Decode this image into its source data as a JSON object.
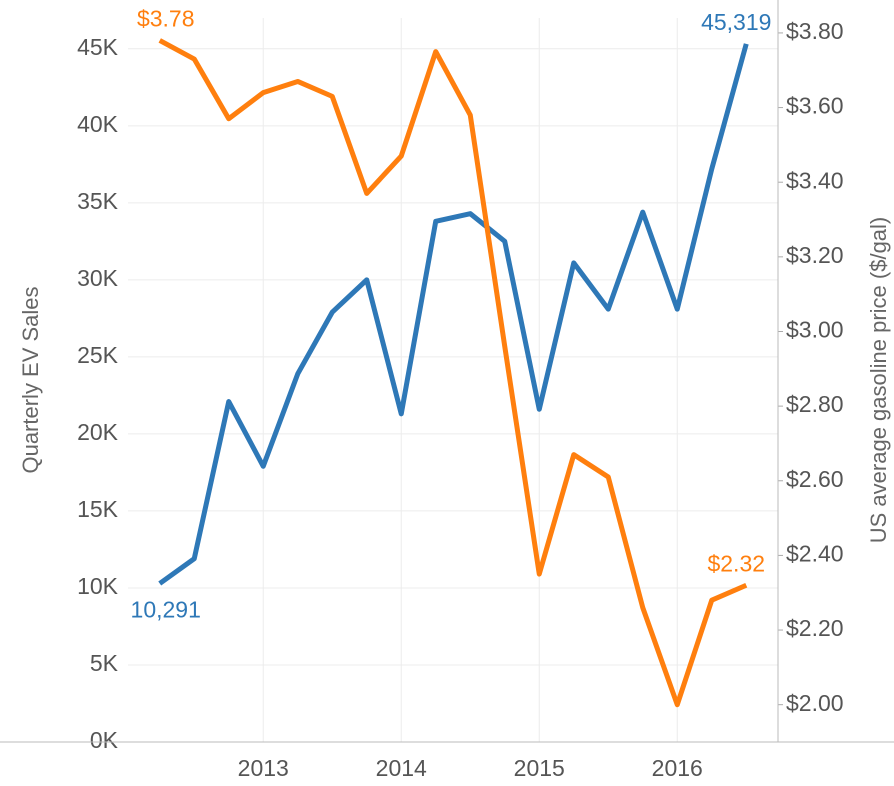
{
  "chart_data": {
    "type": "line",
    "x": [
      2012.25,
      2012.5,
      2012.75,
      2013,
      2013.25,
      2013.5,
      2013.75,
      2014,
      2014.25,
      2014.5,
      2014.75,
      2015,
      2015.25,
      2015.5,
      2015.75,
      2016,
      2016.25,
      2016.5
    ],
    "xlim": [
      2012.02,
      2016.73
    ],
    "xticks": [
      2013,
      2014,
      2015,
      2016
    ],
    "ylabel": "Quarterly EV Sales",
    "y2label": "US average gasoline price ($/gal)",
    "ylim": [
      0,
      47000
    ],
    "yticks": [
      {
        "value": 0,
        "label": "0K"
      },
      {
        "value": 5000,
        "label": "5K"
      },
      {
        "value": 10000,
        "label": "10K"
      },
      {
        "value": 15000,
        "label": "15K"
      },
      {
        "value": 20000,
        "label": "20K"
      },
      {
        "value": 25000,
        "label": "25K"
      },
      {
        "value": 30000,
        "label": "30K"
      },
      {
        "value": 35000,
        "label": "35K"
      },
      {
        "value": 40000,
        "label": "40K"
      },
      {
        "value": 45000,
        "label": "45K"
      }
    ],
    "y2lim": [
      1.9,
      3.84
    ],
    "y2ticks": [
      {
        "value": 2.0,
        "label": "$2.00"
      },
      {
        "value": 2.2,
        "label": "$2.20"
      },
      {
        "value": 2.4,
        "label": "$2.40"
      },
      {
        "value": 2.6,
        "label": "$2.60"
      },
      {
        "value": 2.8,
        "label": "$2.80"
      },
      {
        "value": 3.0,
        "label": "$3.00"
      },
      {
        "value": 3.2,
        "label": "$3.20"
      },
      {
        "value": 3.4,
        "label": "$3.40"
      },
      {
        "value": 3.6,
        "label": "$3.60"
      },
      {
        "value": 3.8,
        "label": "$3.80"
      }
    ],
    "grid": true,
    "series": [
      {
        "color": "#2e78b7",
        "axis": "y",
        "values": [
          10291,
          11900,
          22100,
          17900,
          23900,
          27900,
          30000,
          21300,
          33800,
          34300,
          32500,
          21600,
          31100,
          28100,
          34400,
          28100,
          37200,
          45319
        ],
        "value_labels": [
          "10,291",
          null,
          null,
          null,
          null,
          null,
          null,
          null,
          null,
          null,
          null,
          null,
          null,
          null,
          null,
          null,
          null,
          "45,319"
        ]
      },
      {
        "color": "#ff7f0e",
        "axis": "y2",
        "values": [
          3.78,
          3.73,
          3.57,
          3.64,
          3.67,
          3.63,
          3.37,
          3.47,
          3.75,
          3.58,
          2.96,
          2.35,
          2.67,
          2.61,
          2.26,
          2.0,
          2.28,
          2.32
        ],
        "value_labels": [
          "$3.78",
          null,
          null,
          null,
          null,
          null,
          null,
          null,
          null,
          null,
          null,
          null,
          null,
          null,
          null,
          null,
          null,
          "$2.32"
        ]
      }
    ]
  }
}
